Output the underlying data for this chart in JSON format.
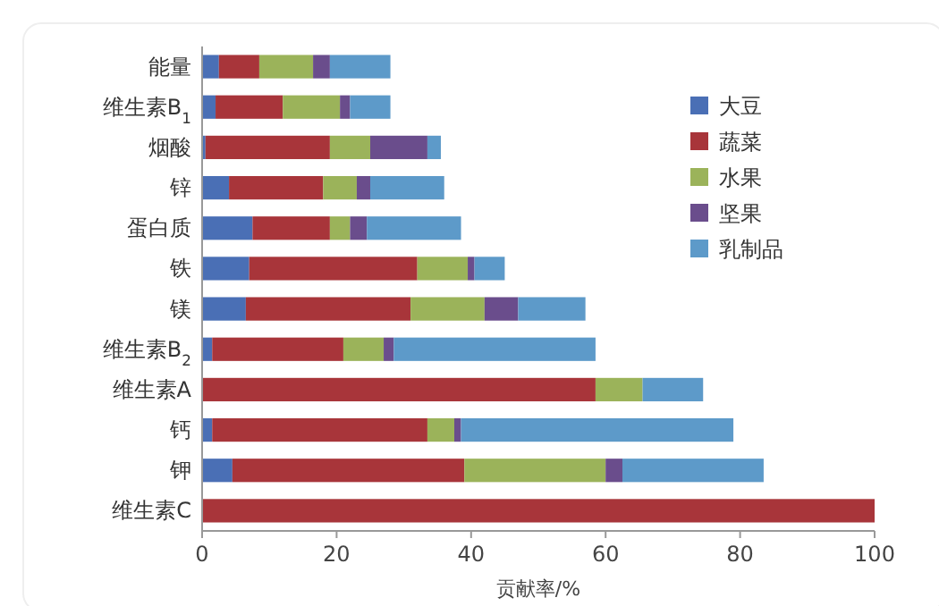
{
  "chart_data": {
    "type": "bar",
    "orientation": "horizontal",
    "stacked": true,
    "xlabel": "贡献率/%",
    "categories": [
      "能量",
      "维生素B$_{1}$",
      "烟酸",
      "锌",
      "蛋白质",
      "铁",
      "镁",
      "维生素B$_{2}$",
      "维生素A",
      "钙",
      "钾",
      "维生素C"
    ],
    "series": [
      {
        "name": "大豆",
        "color": "#4a6fb5",
        "values": [
          2.5,
          2,
          0.5,
          4,
          7.5,
          7,
          6.5,
          1.5,
          0,
          1.5,
          4.5,
          0
        ]
      },
      {
        "name": "蔬菜",
        "color": "#a8353a",
        "values": [
          6,
          10,
          18.5,
          14,
          11.5,
          25,
          24.5,
          19.5,
          58.5,
          32,
          34.5,
          100
        ]
      },
      {
        "name": "水果",
        "color": "#9bb35a",
        "values": [
          8,
          8.5,
          6,
          5,
          3,
          7.5,
          11,
          6,
          7,
          4,
          21,
          0
        ]
      },
      {
        "name": "坚果",
        "color": "#6a4d8c",
        "values": [
          2.5,
          1.5,
          8.5,
          2,
          2.5,
          1,
          5,
          1.5,
          0,
          1,
          2.5,
          0
        ]
      },
      {
        "name": "乳制品",
        "color": "#5d9ac9",
        "values": [
          9,
          6,
          2,
          11,
          14,
          4.5,
          10,
          30,
          9,
          40.5,
          21,
          0
        ]
      }
    ],
    "xlim": [
      0,
      100
    ],
    "xticks": [
      0,
      20,
      40,
      60,
      80,
      100
    ],
    "legend": "top right"
  }
}
